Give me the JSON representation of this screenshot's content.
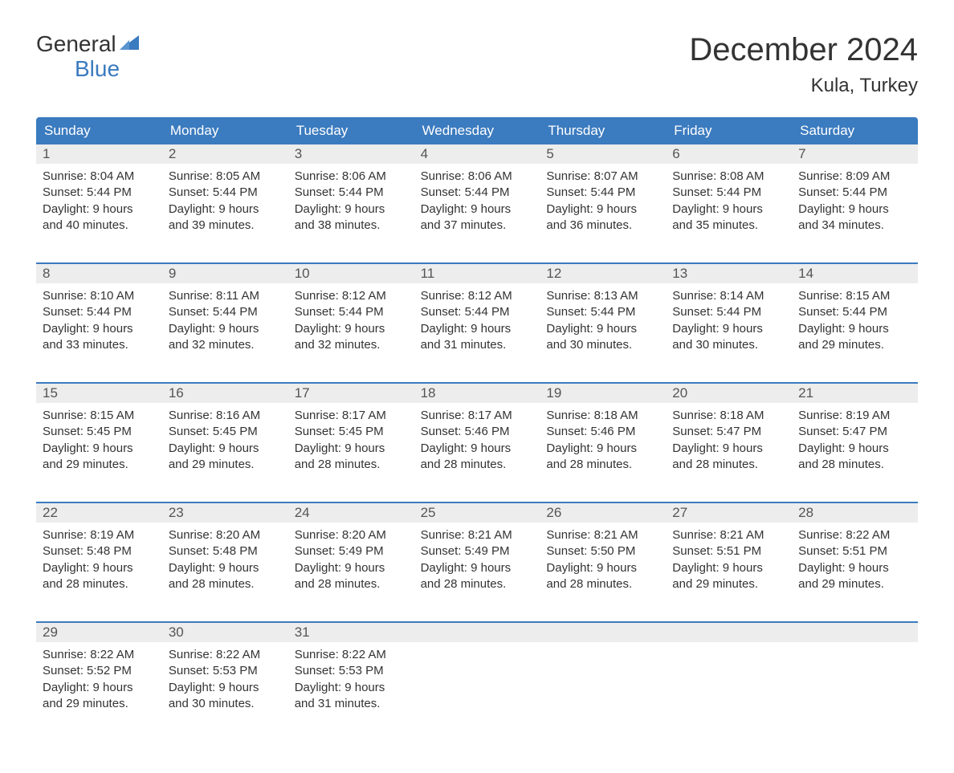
{
  "logo": {
    "text_general": "General",
    "text_blue": "Blue",
    "sail_color": "#3b7bbf",
    "text_color_general": "#333333",
    "text_color_blue": "#3b7bbf"
  },
  "title": {
    "month_year": "December 2024",
    "location": "Kula, Turkey"
  },
  "colors": {
    "header_bg": "#3b7bbf",
    "header_text": "#ffffff",
    "day_number_bg": "#ededed",
    "day_number_text": "#555555",
    "body_text": "#333333",
    "week_border": "#3b7bbf",
    "page_bg": "#ffffff"
  },
  "weekdays": [
    "Sunday",
    "Monday",
    "Tuesday",
    "Wednesday",
    "Thursday",
    "Friday",
    "Saturday"
  ],
  "weeks": [
    [
      {
        "day": "1",
        "sunrise": "Sunrise: 8:04 AM",
        "sunset": "Sunset: 5:44 PM",
        "daylight1": "Daylight: 9 hours",
        "daylight2": "and 40 minutes."
      },
      {
        "day": "2",
        "sunrise": "Sunrise: 8:05 AM",
        "sunset": "Sunset: 5:44 PM",
        "daylight1": "Daylight: 9 hours",
        "daylight2": "and 39 minutes."
      },
      {
        "day": "3",
        "sunrise": "Sunrise: 8:06 AM",
        "sunset": "Sunset: 5:44 PM",
        "daylight1": "Daylight: 9 hours",
        "daylight2": "and 38 minutes."
      },
      {
        "day": "4",
        "sunrise": "Sunrise: 8:06 AM",
        "sunset": "Sunset: 5:44 PM",
        "daylight1": "Daylight: 9 hours",
        "daylight2": "and 37 minutes."
      },
      {
        "day": "5",
        "sunrise": "Sunrise: 8:07 AM",
        "sunset": "Sunset: 5:44 PM",
        "daylight1": "Daylight: 9 hours",
        "daylight2": "and 36 minutes."
      },
      {
        "day": "6",
        "sunrise": "Sunrise: 8:08 AM",
        "sunset": "Sunset: 5:44 PM",
        "daylight1": "Daylight: 9 hours",
        "daylight2": "and 35 minutes."
      },
      {
        "day": "7",
        "sunrise": "Sunrise: 8:09 AM",
        "sunset": "Sunset: 5:44 PM",
        "daylight1": "Daylight: 9 hours",
        "daylight2": "and 34 minutes."
      }
    ],
    [
      {
        "day": "8",
        "sunrise": "Sunrise: 8:10 AM",
        "sunset": "Sunset: 5:44 PM",
        "daylight1": "Daylight: 9 hours",
        "daylight2": "and 33 minutes."
      },
      {
        "day": "9",
        "sunrise": "Sunrise: 8:11 AM",
        "sunset": "Sunset: 5:44 PM",
        "daylight1": "Daylight: 9 hours",
        "daylight2": "and 32 minutes."
      },
      {
        "day": "10",
        "sunrise": "Sunrise: 8:12 AM",
        "sunset": "Sunset: 5:44 PM",
        "daylight1": "Daylight: 9 hours",
        "daylight2": "and 32 minutes."
      },
      {
        "day": "11",
        "sunrise": "Sunrise: 8:12 AM",
        "sunset": "Sunset: 5:44 PM",
        "daylight1": "Daylight: 9 hours",
        "daylight2": "and 31 minutes."
      },
      {
        "day": "12",
        "sunrise": "Sunrise: 8:13 AM",
        "sunset": "Sunset: 5:44 PM",
        "daylight1": "Daylight: 9 hours",
        "daylight2": "and 30 minutes."
      },
      {
        "day": "13",
        "sunrise": "Sunrise: 8:14 AM",
        "sunset": "Sunset: 5:44 PM",
        "daylight1": "Daylight: 9 hours",
        "daylight2": "and 30 minutes."
      },
      {
        "day": "14",
        "sunrise": "Sunrise: 8:15 AM",
        "sunset": "Sunset: 5:44 PM",
        "daylight1": "Daylight: 9 hours",
        "daylight2": "and 29 minutes."
      }
    ],
    [
      {
        "day": "15",
        "sunrise": "Sunrise: 8:15 AM",
        "sunset": "Sunset: 5:45 PM",
        "daylight1": "Daylight: 9 hours",
        "daylight2": "and 29 minutes."
      },
      {
        "day": "16",
        "sunrise": "Sunrise: 8:16 AM",
        "sunset": "Sunset: 5:45 PM",
        "daylight1": "Daylight: 9 hours",
        "daylight2": "and 29 minutes."
      },
      {
        "day": "17",
        "sunrise": "Sunrise: 8:17 AM",
        "sunset": "Sunset: 5:45 PM",
        "daylight1": "Daylight: 9 hours",
        "daylight2": "and 28 minutes."
      },
      {
        "day": "18",
        "sunrise": "Sunrise: 8:17 AM",
        "sunset": "Sunset: 5:46 PM",
        "daylight1": "Daylight: 9 hours",
        "daylight2": "and 28 minutes."
      },
      {
        "day": "19",
        "sunrise": "Sunrise: 8:18 AM",
        "sunset": "Sunset: 5:46 PM",
        "daylight1": "Daylight: 9 hours",
        "daylight2": "and 28 minutes."
      },
      {
        "day": "20",
        "sunrise": "Sunrise: 8:18 AM",
        "sunset": "Sunset: 5:47 PM",
        "daylight1": "Daylight: 9 hours",
        "daylight2": "and 28 minutes."
      },
      {
        "day": "21",
        "sunrise": "Sunrise: 8:19 AM",
        "sunset": "Sunset: 5:47 PM",
        "daylight1": "Daylight: 9 hours",
        "daylight2": "and 28 minutes."
      }
    ],
    [
      {
        "day": "22",
        "sunrise": "Sunrise: 8:19 AM",
        "sunset": "Sunset: 5:48 PM",
        "daylight1": "Daylight: 9 hours",
        "daylight2": "and 28 minutes."
      },
      {
        "day": "23",
        "sunrise": "Sunrise: 8:20 AM",
        "sunset": "Sunset: 5:48 PM",
        "daylight1": "Daylight: 9 hours",
        "daylight2": "and 28 minutes."
      },
      {
        "day": "24",
        "sunrise": "Sunrise: 8:20 AM",
        "sunset": "Sunset: 5:49 PM",
        "daylight1": "Daylight: 9 hours",
        "daylight2": "and 28 minutes."
      },
      {
        "day": "25",
        "sunrise": "Sunrise: 8:21 AM",
        "sunset": "Sunset: 5:49 PM",
        "daylight1": "Daylight: 9 hours",
        "daylight2": "and 28 minutes."
      },
      {
        "day": "26",
        "sunrise": "Sunrise: 8:21 AM",
        "sunset": "Sunset: 5:50 PM",
        "daylight1": "Daylight: 9 hours",
        "daylight2": "and 28 minutes."
      },
      {
        "day": "27",
        "sunrise": "Sunrise: 8:21 AM",
        "sunset": "Sunset: 5:51 PM",
        "daylight1": "Daylight: 9 hours",
        "daylight2": "and 29 minutes."
      },
      {
        "day": "28",
        "sunrise": "Sunrise: 8:22 AM",
        "sunset": "Sunset: 5:51 PM",
        "daylight1": "Daylight: 9 hours",
        "daylight2": "and 29 minutes."
      }
    ],
    [
      {
        "day": "29",
        "sunrise": "Sunrise: 8:22 AM",
        "sunset": "Sunset: 5:52 PM",
        "daylight1": "Daylight: 9 hours",
        "daylight2": "and 29 minutes."
      },
      {
        "day": "30",
        "sunrise": "Sunrise: 8:22 AM",
        "sunset": "Sunset: 5:53 PM",
        "daylight1": "Daylight: 9 hours",
        "daylight2": "and 30 minutes."
      },
      {
        "day": "31",
        "sunrise": "Sunrise: 8:22 AM",
        "sunset": "Sunset: 5:53 PM",
        "daylight1": "Daylight: 9 hours",
        "daylight2": "and 31 minutes."
      },
      {
        "empty": true
      },
      {
        "empty": true
      },
      {
        "empty": true
      },
      {
        "empty": true
      }
    ]
  ]
}
